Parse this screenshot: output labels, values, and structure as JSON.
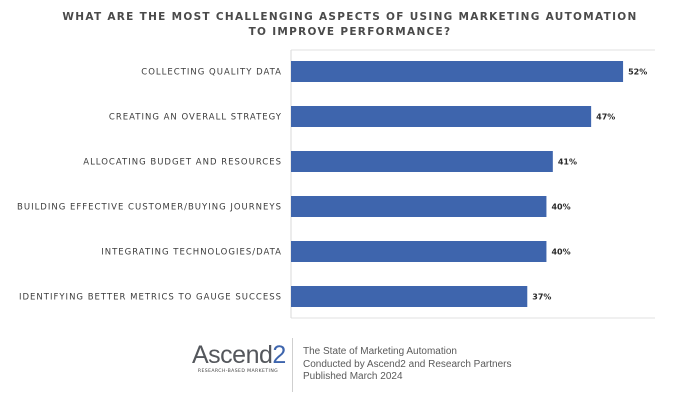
{
  "chart_data": {
    "type": "bar",
    "orientation": "horizontal",
    "title": "WHAT ARE THE MOST CHALLENGING ASPECTS OF USING MARKETING AUTOMATION TO IMPROVE PERFORMANCE?",
    "categories": [
      "COLLECTING QUALITY DATA",
      "CREATING AN OVERALL STRATEGY",
      "ALLOCATING BUDGET AND RESOURCES",
      "BUILDING EFFECTIVE CUSTOMER/BUYING JOURNEYS",
      "INTEGRATING TECHNOLOGIES/DATA",
      "IDENTIFYING BETTER METRICS TO GAUGE SUCCESS"
    ],
    "values": [
      52,
      47,
      41,
      40,
      40,
      37
    ],
    "value_labels": [
      "52%",
      "47%",
      "41%",
      "40%",
      "40%",
      "37%"
    ],
    "unit": "%",
    "xlim": [
      0,
      57
    ],
    "grid": false,
    "colors": {
      "bar": "#3e65ad",
      "gridline": "#e2e2e2"
    }
  },
  "footer": {
    "logo_main": "Ascend",
    "logo_accent": "2",
    "logo_sub": "RESEARCH-BASED MARKETING",
    "lines": [
      "The State of Marketing Automation",
      "Conducted by Ascend2 and Research Partners",
      "Published March 2024"
    ]
  }
}
